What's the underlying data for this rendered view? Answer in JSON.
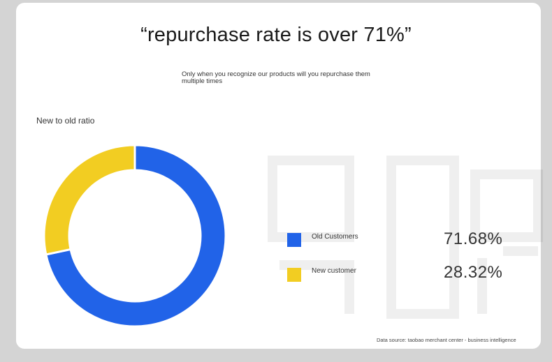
{
  "title": "“repurchase rate is over 71%”",
  "subtitle": "Only when you recognize our products will you repurchase them multiple times",
  "ratio_label": "New to old ratio",
  "footer": "Data source: taobao merchant center - business intelligence",
  "colors": {
    "old": "#2163e8",
    "new": "#f2cd22",
    "background": "#d4d4d4",
    "card": "#ffffff"
  },
  "chart_data": {
    "type": "pie",
    "donut": true,
    "title": "New to old ratio",
    "categories": [
      "Old Customers",
      "New customer"
    ],
    "values": [
      71.68,
      28.32
    ],
    "value_labels": [
      "71.68%",
      "28.32%"
    ],
    "legend": "right"
  },
  "legend": [
    {
      "label": "Old Customers",
      "value": "71.68%"
    },
    {
      "label": "New customer",
      "value": "28.32%"
    }
  ]
}
